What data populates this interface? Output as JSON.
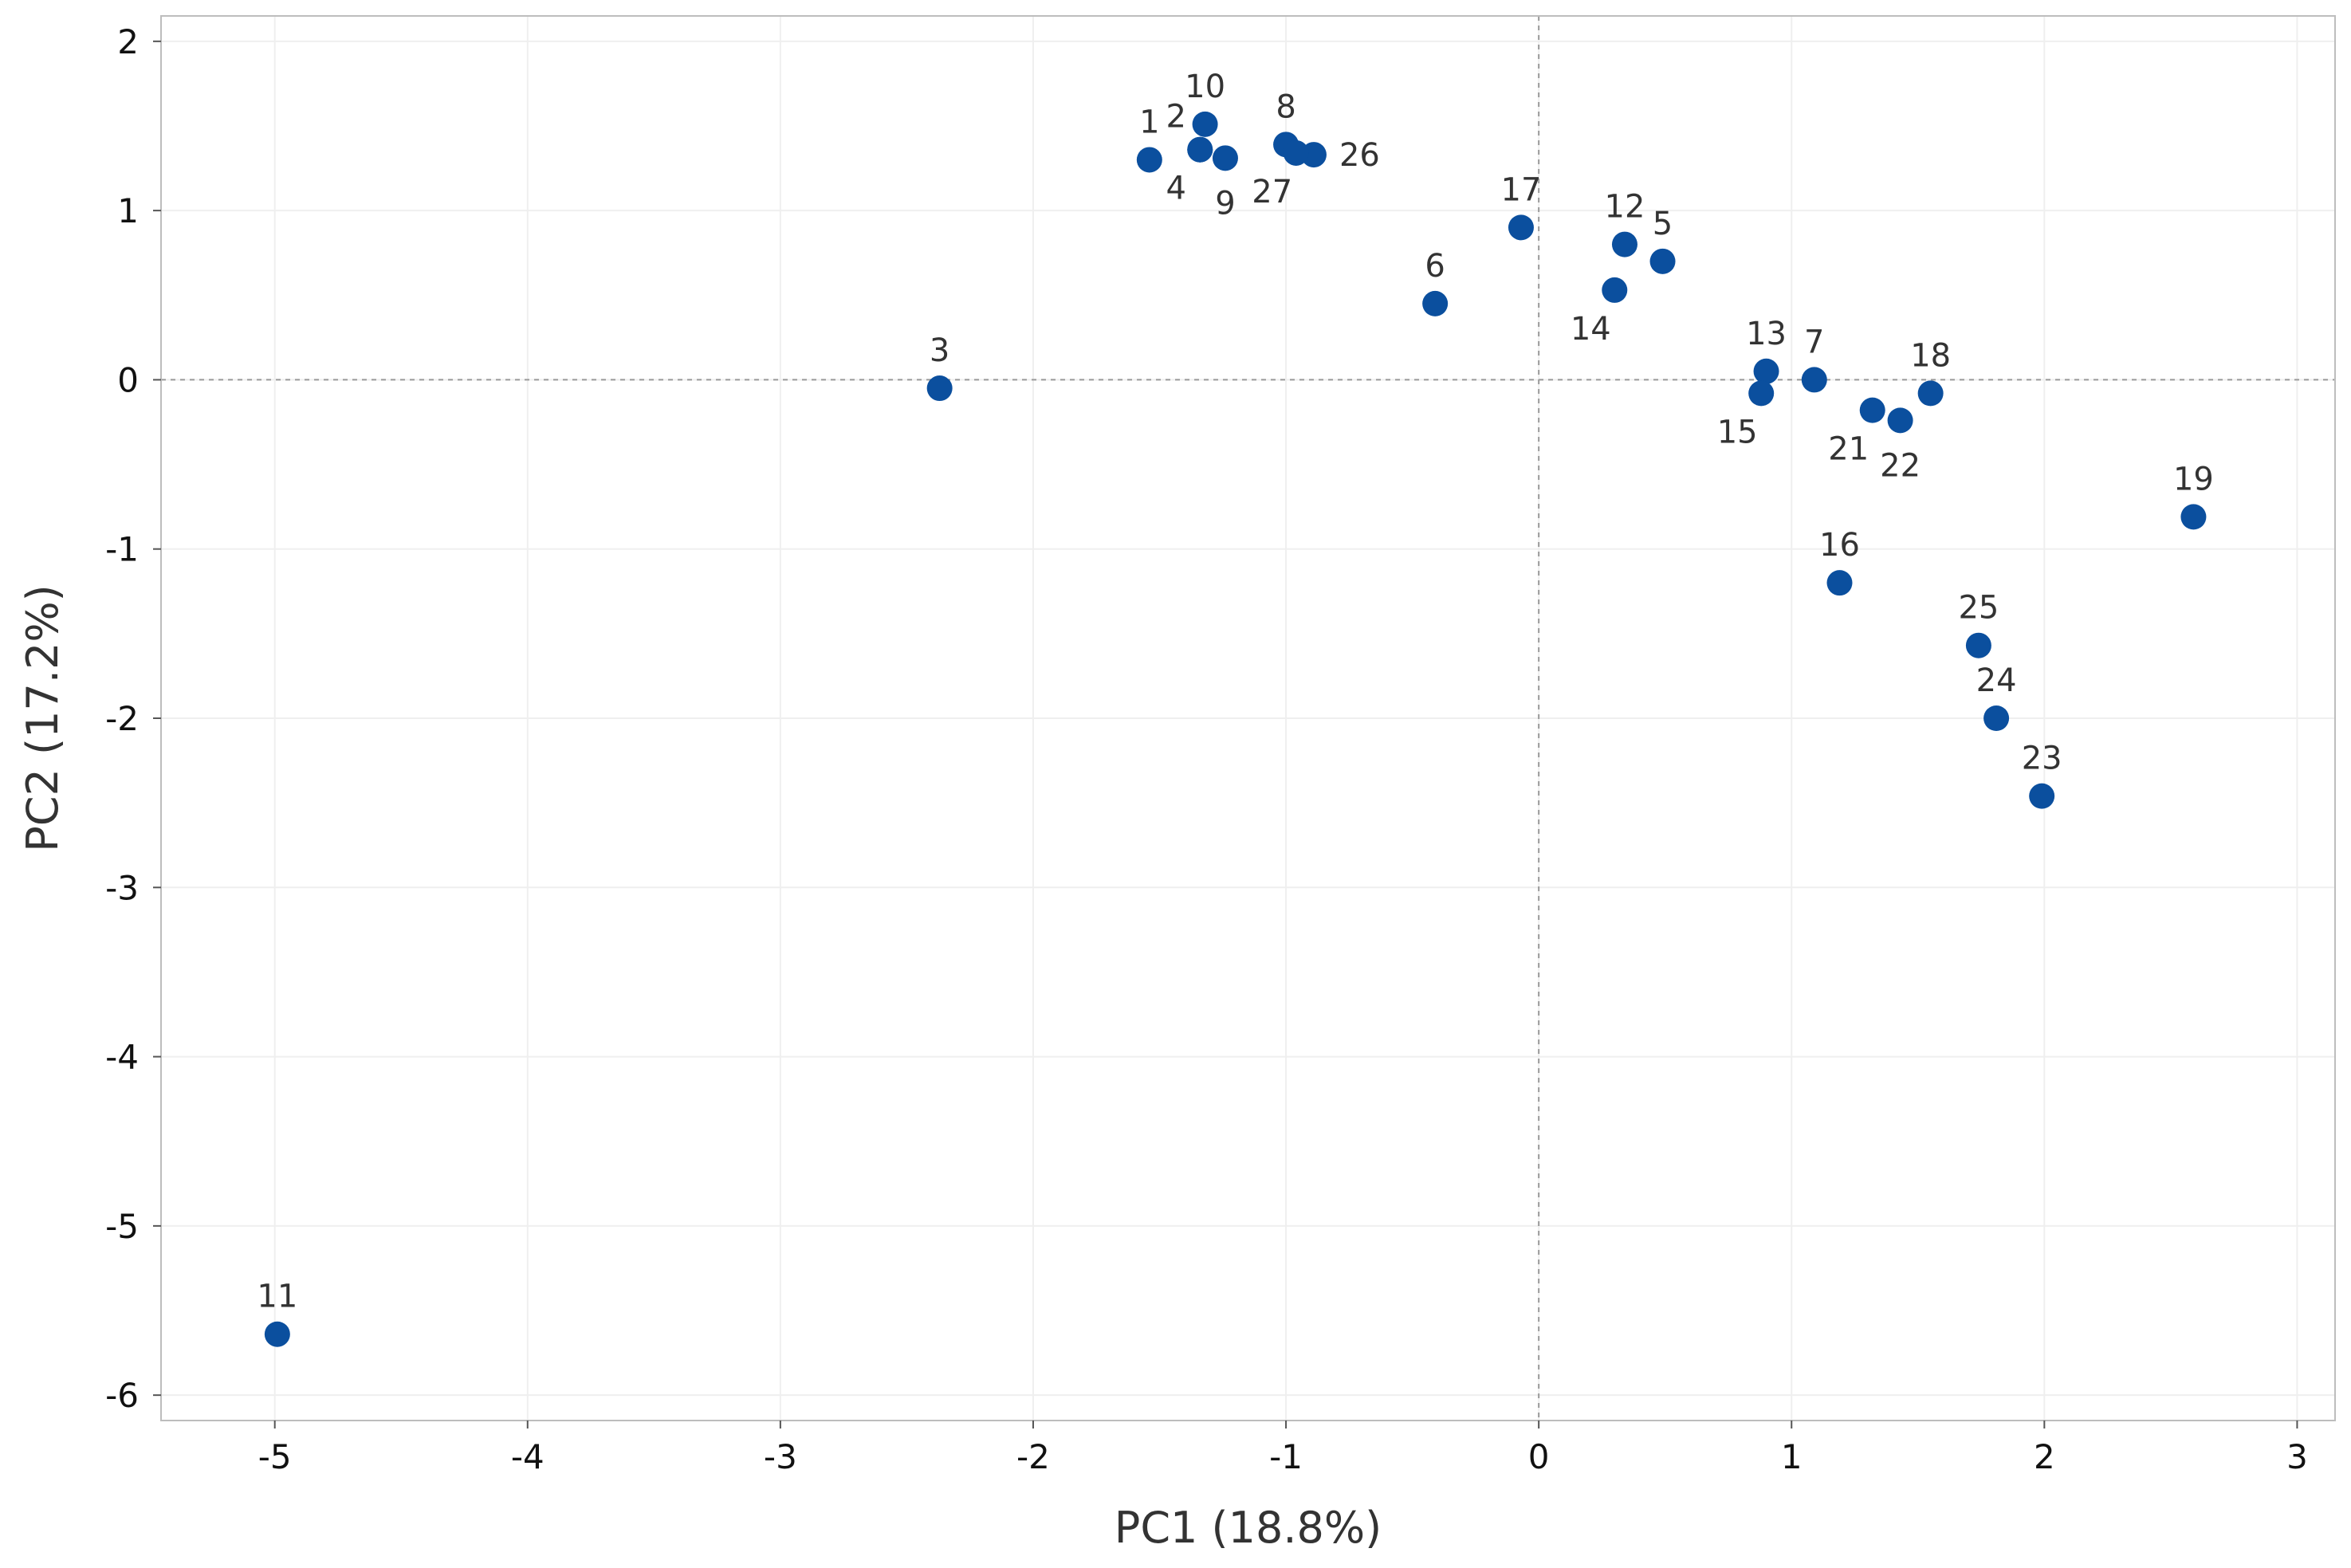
{
  "chart_data": {
    "type": "scatter",
    "title": "",
    "xlabel": "PC1 (18.8%)",
    "ylabel": "PC2 (17.2%)",
    "xlim": [
      -5.45,
      3.15
    ],
    "ylim": [
      -6.15,
      2.15
    ],
    "xticks": [
      -5,
      -4,
      -3,
      -2,
      -1,
      0,
      1,
      2,
      3
    ],
    "yticks": [
      2,
      1,
      0,
      -1,
      -2,
      -3,
      -4,
      -5,
      -6
    ],
    "reference_lines": {
      "x": 0,
      "y": 0
    },
    "grid": true,
    "marker_color": "#0b4f9e",
    "points": [
      {
        "label": "1",
        "x": -1.54,
        "y": 1.3,
        "label_pos": "above"
      },
      {
        "label": "2",
        "x": -1.34,
        "y": 1.36,
        "label_pos": "above-left"
      },
      {
        "label": "3",
        "x": -2.37,
        "y": -0.05,
        "label_pos": "above"
      },
      {
        "label": "4",
        "x": -1.34,
        "y": 1.36,
        "label_pos": "below-left"
      },
      {
        "label": "5",
        "x": 0.49,
        "y": 0.7,
        "label_pos": "above"
      },
      {
        "label": "6",
        "x": -0.41,
        "y": 0.45,
        "label_pos": "above"
      },
      {
        "label": "7",
        "x": 1.09,
        "y": 0.0,
        "label_pos": "above"
      },
      {
        "label": "8",
        "x": -1.0,
        "y": 1.39,
        "label_pos": "above"
      },
      {
        "label": "9",
        "x": -1.24,
        "y": 1.31,
        "label_pos": "below"
      },
      {
        "label": "10",
        "x": -1.32,
        "y": 1.51,
        "label_pos": "above"
      },
      {
        "label": "11",
        "x": -4.99,
        "y": -5.64,
        "label_pos": "above"
      },
      {
        "label": "12",
        "x": 0.34,
        "y": 0.8,
        "label_pos": "above"
      },
      {
        "label": "13",
        "x": 0.9,
        "y": 0.05,
        "label_pos": "above"
      },
      {
        "label": "14",
        "x": 0.3,
        "y": 0.53,
        "label_pos": "below-left"
      },
      {
        "label": "15",
        "x": 0.88,
        "y": -0.08,
        "label_pos": "below-left"
      },
      {
        "label": "16",
        "x": 1.19,
        "y": -1.2,
        "label_pos": "above"
      },
      {
        "label": "17",
        "x": -0.07,
        "y": 0.9,
        "label_pos": "above"
      },
      {
        "label": "18",
        "x": 1.55,
        "y": -0.08,
        "label_pos": "above"
      },
      {
        "label": "19",
        "x": 2.59,
        "y": -0.81,
        "label_pos": "above"
      },
      {
        "label": "21",
        "x": 1.32,
        "y": -0.18,
        "label_pos": "below-left"
      },
      {
        "label": "22",
        "x": 1.43,
        "y": -0.24,
        "label_pos": "below"
      },
      {
        "label": "23",
        "x": 1.99,
        "y": -2.46,
        "label_pos": "above"
      },
      {
        "label": "24",
        "x": 1.81,
        "y": -2.0,
        "label_pos": "above"
      },
      {
        "label": "25",
        "x": 1.74,
        "y": -1.57,
        "label_pos": "above"
      },
      {
        "label": "26",
        "x": -0.89,
        "y": 1.33,
        "label_pos": "right"
      },
      {
        "label": "27",
        "x": -0.96,
        "y": 1.34,
        "label_pos": "below-left"
      }
    ]
  }
}
